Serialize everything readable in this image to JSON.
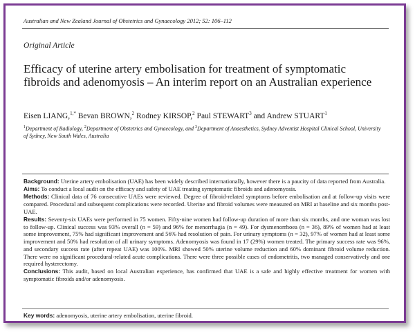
{
  "header": {
    "journal_line": "Australian and New Zealand Journal of Obstetrics and Gynaecology 2012; 52: 106–112",
    "article_type": "Original Article"
  },
  "title": "Efficacy of uterine artery embolisation for treatment of symptomatic fibroids and adenomyosis – An interim report on an Australian experience",
  "authors": [
    {
      "name": "Eisen LIANG,",
      "sup": "1,*",
      "sep": " "
    },
    {
      "name": "Bevan BROWN,",
      "sup": "2",
      "sep": " "
    },
    {
      "name": "Rodney KIRSOP,",
      "sup": "2",
      "sep": " "
    },
    {
      "name": "Paul STEWART",
      "sup": "3",
      "sep": " and "
    },
    {
      "name": "Andrew STUART",
      "sup": "1",
      "sep": ""
    }
  ],
  "affiliations": {
    "sup1": "1",
    "text1": "Department of Radiology, ",
    "sup2": "2",
    "text2": "Department of Obstetrics and Gynaecology, and ",
    "sup3": "3",
    "text3": "Department of Anaesthetics, Sydney Adventist Hospital Clinical School, University of Sydney, New South Wales, Australia"
  },
  "abstract": {
    "background_label": "Background:",
    "background": "Uterine artery embolisation (UAE) has been widely described internationally, however there is a paucity of data reported from Australia.",
    "aims_label": "Aims:",
    "aims": "To conduct a local audit on the efficacy and safety of UAE treating symptomatic fibroids and adenomyosis.",
    "methods_label": "Methods:",
    "methods": "Clinical data of 76 consecutive UAEs were reviewed. Degree of fibroid-related symptoms before embolisation and at follow-up visits were compared. Procedural and subsequent complications were recorded. Uterine and fibroid volumes were measured on MRI at baseline and six months post-UAE.",
    "results_label": "Results:",
    "results": "Seventy-six UAEs were performed in 75 women. Fifty-nine women had follow-up duration of more than six months, and one woman was lost to follow-up. Clinical success was 93% overall (n = 59) and 96% for menorrhagia (n = 49). For dysmenorrhoea (n = 36), 89% of women had at least some improvement, 75% had significant improvement and 56% had resolution of pain. For urinary symptoms (n = 32), 97% of women had at least some improvement and 50% had resolution of all urinary symptoms. Adenomyosis was found in 17 (29%) women treated. The primary success rate was 96%, and secondary success rate (after repeat UAE) was 100%. MRI showed 50% uterine volume reduction and 60% dominant fibroid volume reduction. There were no significant procedural-related acute complications. There were three possible cases of endometritis, two managed conservatively and one required hysterectomy.",
    "conclusions_label": "Conclusions:",
    "conclusions": "This audit, based on local Australian experience, has confirmed that UAE is a safe and highly effective treatment for women with symptomatic fibroids and/or adenomyosis."
  },
  "keywords": {
    "label": "Key words:",
    "text": "adenomyosis, uterine artery embolisation, uterine fibroid."
  }
}
